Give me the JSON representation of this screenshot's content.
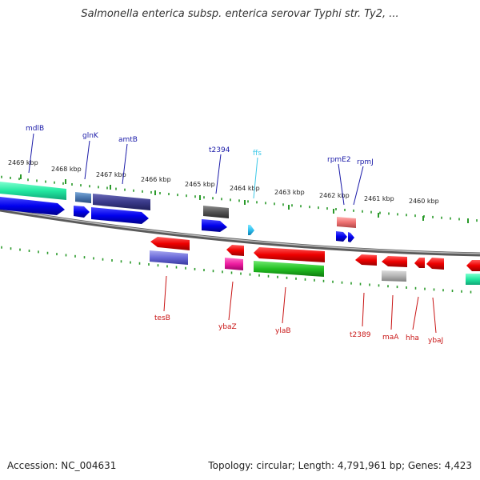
{
  "title": "Salmonella enterica subsp. enterica serovar Typhi str. Ty2, ...",
  "footer": {
    "accession": "Accession: NC_004631",
    "summary": "Topology: circular; Length: 4,791,961 bp; Genes: 4,423"
  },
  "scale": {
    "ticks": [
      "2469 kbp",
      "2468 kbp",
      "2467 kbp",
      "2466 kbp",
      "2465 kbp",
      "2464 kbp",
      "2463 kbp",
      "2462 kbp",
      "2461 kbp",
      "2460 kbp"
    ]
  },
  "genes_top": [
    {
      "name": "mdlB",
      "color": "#1a1aa8"
    },
    {
      "name": "glnK",
      "color": "#1a1aa8"
    },
    {
      "name": "amtB",
      "color": "#1a1aa8"
    },
    {
      "name": "t2394",
      "color": "#1a1aa8"
    },
    {
      "name": "ffs",
      "color": "#3cc8e8"
    },
    {
      "name": "rpmE2",
      "color": "#1a1aa8"
    },
    {
      "name": "rpmJ",
      "color": "#1a1aa8"
    }
  ],
  "genes_bottom": [
    {
      "name": "tesB",
      "color": "#c81414"
    },
    {
      "name": "ybaZ",
      "color": "#c81414"
    },
    {
      "name": "ylaB",
      "color": "#c81414"
    },
    {
      "name": "t2389",
      "color": "#c81414"
    },
    {
      "name": "maA",
      "color": "#c81414"
    },
    {
      "name": "hha",
      "color": "#c81414"
    },
    {
      "name": "ybaJ",
      "color": "#c81414"
    }
  ],
  "colors": {
    "forward_gene": "#0000ee",
    "reverse_gene": "#ee0000",
    "backbone": "#888888",
    "tick": "#2a9a2a"
  }
}
